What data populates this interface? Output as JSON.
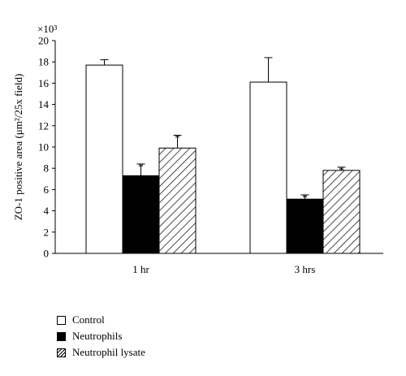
{
  "chart_data": {
    "type": "bar",
    "categories": [
      "1 hr",
      "3 hrs"
    ],
    "series": [
      {
        "name": "Control",
        "values": [
          17.7,
          16.1
        ],
        "errors": [
          0.5,
          2.3
        ],
        "significant": [
          false,
          false
        ],
        "fill": "open"
      },
      {
        "name": "Neutrophils",
        "values": [
          7.3,
          5.1
        ],
        "errors": [
          1.1,
          0.4
        ],
        "significant": [
          true,
          true
        ],
        "fill": "solid"
      },
      {
        "name": "Neutrophil lysate",
        "values": [
          9.9,
          7.8
        ],
        "errors": [
          1.2,
          0.3
        ],
        "significant": [
          true,
          true
        ],
        "fill": "hatched"
      }
    ],
    "ylabel": "ZO-1 positive area (μm²/25x field)",
    "yscale_label": "×10³",
    "ylim": [
      0,
      20
    ],
    "yticks": [
      0,
      2,
      4,
      6,
      8,
      10,
      12,
      14,
      16,
      18,
      20
    ],
    "significance_marker": "*",
    "legend_position": "bottom-left",
    "colors": {
      "open": "#ffffff",
      "solid": "#000000",
      "stroke": "#000000"
    }
  }
}
